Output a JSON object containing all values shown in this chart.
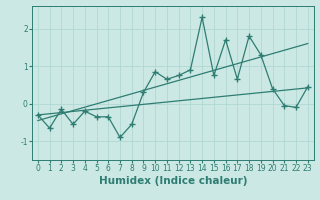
{
  "xlabel": "Humidex (Indice chaleur)",
  "ylabel": "",
  "bg_color": "#cce8e4",
  "grid_color": "#b0d8d4",
  "line_color": "#2e7d72",
  "x_data": [
    0,
    1,
    2,
    3,
    4,
    5,
    6,
    7,
    8,
    9,
    10,
    11,
    12,
    13,
    14,
    15,
    16,
    17,
    18,
    19,
    20,
    21,
    22,
    23
  ],
  "y_data": [
    -0.3,
    -0.65,
    -0.15,
    -0.55,
    -0.2,
    -0.35,
    -0.35,
    -0.9,
    -0.55,
    0.3,
    0.85,
    0.65,
    0.75,
    0.9,
    2.3,
    0.75,
    1.7,
    0.65,
    1.8,
    1.3,
    0.4,
    -0.05,
    -0.1,
    0.45
  ],
  "trend1_x": [
    0,
    23
  ],
  "trend1_y": [
    -0.45,
    1.6
  ],
  "trend2_x": [
    0,
    23
  ],
  "trend2_y": [
    -0.3,
    0.42
  ],
  "xlim": [
    -0.5,
    23.5
  ],
  "ylim": [
    -1.5,
    2.6
  ],
  "yticks": [
    -1,
    0,
    1,
    2
  ],
  "xticks": [
    0,
    1,
    2,
    3,
    4,
    5,
    6,
    7,
    8,
    9,
    10,
    11,
    12,
    13,
    14,
    15,
    16,
    17,
    18,
    19,
    20,
    21,
    22,
    23
  ],
  "tick_fontsize": 5.5,
  "label_fontsize": 7.5
}
